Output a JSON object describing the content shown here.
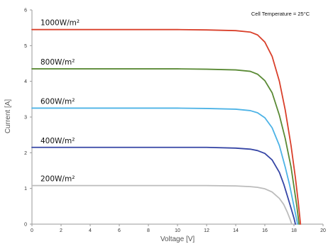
{
  "chart_data": {
    "type": "line",
    "title": "",
    "annotation": "Cell Temperature = 25°C",
    "xlabel": "Voltage [V]",
    "ylabel": "Current [A]",
    "xlim": [
      0,
      20
    ],
    "ylim": [
      0,
      6
    ],
    "xticks": [
      0,
      2,
      4,
      6,
      8,
      10,
      12,
      14,
      16,
      18,
      20
    ],
    "yticks": [
      0,
      1,
      2,
      3,
      4,
      5,
      6
    ],
    "grid": false,
    "series": [
      {
        "name": "1000W/m²",
        "color": "#d9402b",
        "x": [
          0,
          2,
          4,
          6,
          8,
          10,
          12,
          14,
          15,
          15.5,
          16,
          16.5,
          17,
          17.4,
          17.8,
          18.1,
          18.3,
          18.45
        ],
        "y": [
          5.45,
          5.45,
          5.45,
          5.45,
          5.45,
          5.45,
          5.44,
          5.42,
          5.38,
          5.3,
          5.1,
          4.7,
          4.0,
          3.2,
          2.2,
          1.3,
          0.6,
          0
        ]
      },
      {
        "name": "800W/m²",
        "color": "#5a8a35",
        "x": [
          0,
          2,
          4,
          6,
          8,
          10,
          12,
          14,
          15,
          15.5,
          16,
          16.5,
          17,
          17.4,
          17.8,
          18.0,
          18.2,
          18.35
        ],
        "y": [
          4.35,
          4.35,
          4.35,
          4.35,
          4.35,
          4.35,
          4.34,
          4.32,
          4.28,
          4.2,
          4.02,
          3.68,
          3.05,
          2.4,
          1.6,
          1.05,
          0.5,
          0
        ]
      },
      {
        "name": "600W/m²",
        "color": "#4db3e6",
        "x": [
          0,
          2,
          4,
          6,
          8,
          10,
          12,
          14,
          15,
          15.5,
          16,
          16.5,
          17,
          17.4,
          17.7,
          17.95,
          18.1,
          18.25
        ],
        "y": [
          3.25,
          3.25,
          3.25,
          3.25,
          3.25,
          3.25,
          3.24,
          3.22,
          3.18,
          3.12,
          2.98,
          2.7,
          2.2,
          1.6,
          1.1,
          0.6,
          0.3,
          0
        ]
      },
      {
        "name": "400W/m²",
        "color": "#3545a5",
        "x": [
          0,
          2,
          4,
          6,
          8,
          10,
          12,
          14,
          15,
          15.5,
          16,
          16.5,
          17,
          17.3,
          17.6,
          17.85,
          18.0,
          18.1
        ],
        "y": [
          2.15,
          2.15,
          2.15,
          2.15,
          2.15,
          2.15,
          2.15,
          2.13,
          2.1,
          2.06,
          1.98,
          1.8,
          1.45,
          1.12,
          0.72,
          0.38,
          0.17,
          0
        ]
      },
      {
        "name": "200W/m²",
        "color": "#bcbcbc",
        "x": [
          0,
          2,
          4,
          6,
          8,
          10,
          12,
          14,
          15,
          15.5,
          16,
          16.5,
          17,
          17.3,
          17.55,
          17.75,
          17.85
        ],
        "y": [
          1.08,
          1.08,
          1.08,
          1.08,
          1.08,
          1.08,
          1.08,
          1.07,
          1.05,
          1.03,
          0.99,
          0.9,
          0.72,
          0.55,
          0.33,
          0.12,
          0
        ]
      }
    ]
  }
}
